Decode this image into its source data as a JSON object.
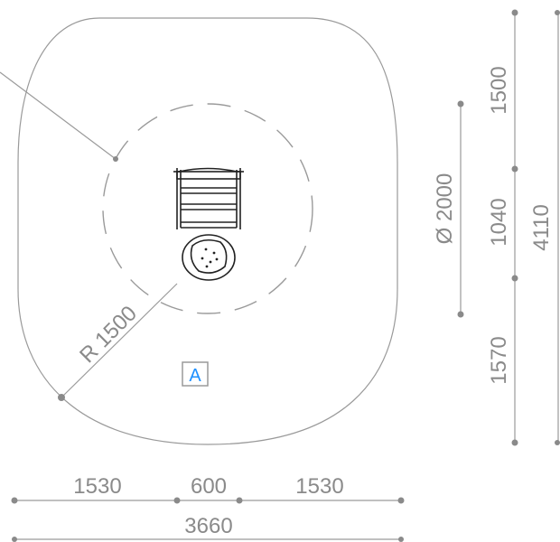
{
  "dimensions": {
    "bottom_segments": [
      "1530",
      "600",
      "1530"
    ],
    "bottom_total": "3660",
    "right_segments": [
      "1500",
      "1040",
      "1570"
    ],
    "right_total": "4110",
    "diameter_label": "Ø 2000",
    "radius_label": "R 1500"
  },
  "marker": {
    "label": "A",
    "color": "#1e90ff"
  },
  "colors": {
    "lines": "#9a9a9a",
    "text": "#8a8a8a",
    "equipment": "#222222"
  }
}
